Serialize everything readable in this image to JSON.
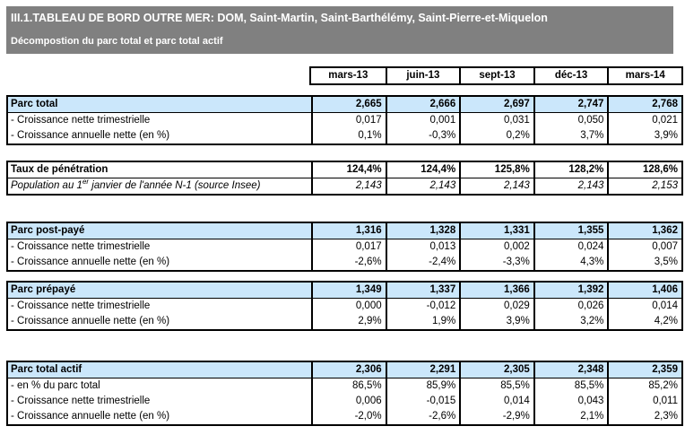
{
  "header": {
    "title": "III.1.TABLEAU DE BORD OUTRE MER: DOM, Saint-Martin, Saint-Barthélémy, Saint-Pierre-et-Miquelon",
    "subtitle": "Décompostion du parc total et parc total actif"
  },
  "columns": [
    "mars-13",
    "juin-13",
    "sept-13",
    "déc-13",
    "mars-14"
  ],
  "sections": [
    {
      "rows": [
        {
          "label": "Parc total",
          "style": "head",
          "values": [
            "2,665",
            "2,666",
            "2,697",
            "2,747",
            "2,768"
          ]
        },
        {
          "label": "- Croissance nette trimestrielle",
          "style": "sub",
          "values": [
            "0,017",
            "0,001",
            "0,031",
            "0,050",
            "0,021"
          ]
        },
        {
          "label": "- Croissance annuelle nette (en %)",
          "style": "sub",
          "values": [
            "0,1%",
            "-0,3%",
            "0,2%",
            "3,7%",
            "3,9%"
          ]
        }
      ]
    },
    {
      "rows": [
        {
          "label": "Taux de pénétration",
          "style": "bold",
          "values": [
            "124,4%",
            "124,4%",
            "125,8%",
            "128,2%",
            "128,6%"
          ]
        },
        {
          "label_parts": [
            {
              "t": "Population au 1"
            },
            {
              "t": "er",
              "sup": true
            },
            {
              "t": " janvier de l'année N-1 (source Insee)"
            }
          ],
          "style": "italic",
          "values": [
            "2,143",
            "2,143",
            "2,143",
            "2,143",
            "2,153"
          ]
        }
      ]
    },
    {
      "rows": [
        {
          "label": "Parc post-payé",
          "style": "head",
          "values": [
            "1,316",
            "1,328",
            "1,331",
            "1,355",
            "1,362"
          ]
        },
        {
          "label": "- Croissance nette trimestrielle",
          "style": "sub",
          "values": [
            "0,017",
            "0,013",
            "0,002",
            "0,024",
            "0,007"
          ]
        },
        {
          "label": "- Croissance annuelle nette (en %)",
          "style": "sub",
          "values": [
            "-2,6%",
            "-2,4%",
            "-3,3%",
            "4,3%",
            "3,5%"
          ]
        }
      ]
    },
    {
      "rows": [
        {
          "label": "Parc prépayé",
          "style": "head",
          "values": [
            "1,349",
            "1,337",
            "1,366",
            "1,392",
            "1,406"
          ]
        },
        {
          "label": "- Croissance nette trimestrielle",
          "style": "sub",
          "values": [
            "0,000",
            "-0,012",
            "0,029",
            "0,026",
            "0,014"
          ]
        },
        {
          "label": "- Croissance annuelle nette (en %)",
          "style": "sub",
          "values": [
            "2,9%",
            "1,9%",
            "3,9%",
            "3,2%",
            "4,2%"
          ]
        }
      ]
    },
    {
      "rows": [
        {
          "label": "Parc total actif",
          "style": "head",
          "values": [
            "2,306",
            "2,291",
            "2,305",
            "2,348",
            "2,359"
          ]
        },
        {
          "label": "- en % du parc total",
          "style": "sub",
          "values": [
            "86,5%",
            "85,9%",
            "85,5%",
            "85,5%",
            "85,2%"
          ]
        },
        {
          "label": "- Croissance nette trimestrielle",
          "style": "sub",
          "values": [
            "0,006",
            "-0,015",
            "0,014",
            "0,043",
            "0,011"
          ]
        },
        {
          "label": "- Croissance annuelle nette (en %)",
          "style": "sub",
          "values": [
            "-2,0%",
            "-2,6%",
            "-2,9%",
            "2,1%",
            "2,3%"
          ]
        }
      ]
    }
  ],
  "colors": {
    "titlebar_bg": "#808080",
    "highlight_row_bg": "#cbe7fb",
    "border": "#000000"
  }
}
